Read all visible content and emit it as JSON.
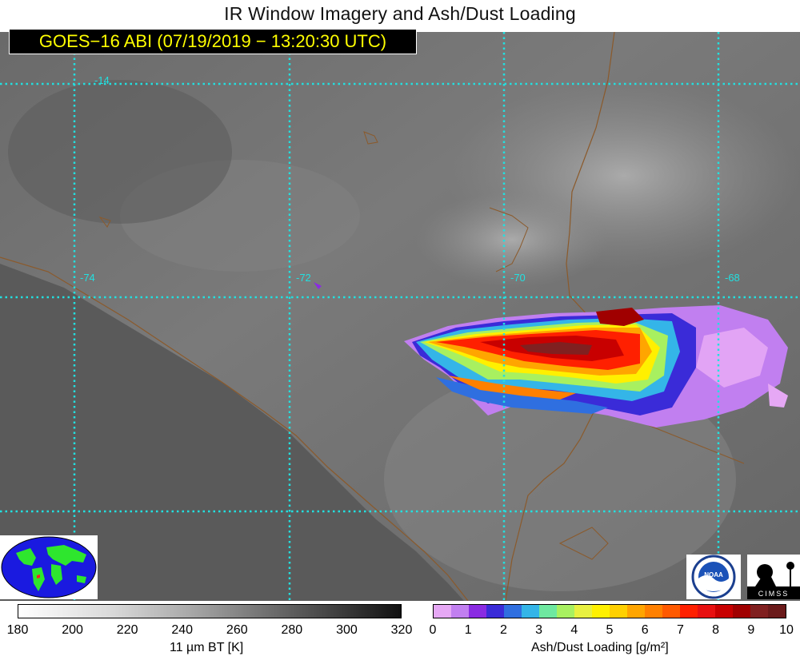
{
  "title": "IR Window Imagery and Ash/Dust Loading",
  "satellite_label": "GOES−16 ABI (07/19/2019 − 13:20:30 UTC)",
  "map": {
    "lon_labels": [
      "-74",
      "-72",
      "-70",
      "-68"
    ],
    "lat_labels": [
      "-14"
    ],
    "grid_color": "#22e0e0",
    "border_color": "#8b5a2b"
  },
  "colorbar_bt": {
    "label": "11 µm BT [K]",
    "ticks": [
      "180",
      "200",
      "220",
      "240",
      "260",
      "280",
      "300",
      "320"
    ]
  },
  "colorbar_ash": {
    "label": "Ash/Dust Loading [g/m²]",
    "ticks": [
      "0",
      "1",
      "2",
      "3",
      "4",
      "5",
      "6",
      "7",
      "8",
      "9",
      "10"
    ],
    "colors": [
      "#e6a8f5",
      "#c17ff0",
      "#8a2be2",
      "#3a2bd8",
      "#2f6fe0",
      "#34b5e8",
      "#6ee8a0",
      "#a8f060",
      "#e8f040",
      "#fff000",
      "#ffd000",
      "#ffa500",
      "#ff8000",
      "#ff5a00",
      "#ff2000",
      "#e81010",
      "#c80000",
      "#a00000",
      "#802020",
      "#6a1a1a"
    ]
  },
  "logos": {
    "noaa": "NOAA",
    "cimss": "CIMSS"
  }
}
